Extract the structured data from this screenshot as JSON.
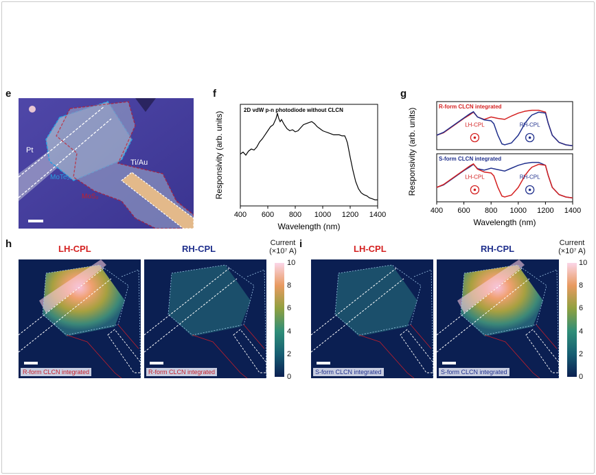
{
  "panels": {
    "e": {
      "label": "e",
      "labels": {
        "pt": "Pt",
        "tiau": "Ti/Au",
        "mote2": "MoTe₂",
        "mos2": "MoS₂"
      }
    },
    "f": {
      "label": "f",
      "inset_title": "2D vdW p-n photodiode without CLCN"
    },
    "g": {
      "label": "g",
      "top_title": "R-form CLCN integrated",
      "bottom_title": "S-form CLCN integrated",
      "lh_label": "LH-CPL",
      "rh_label": "RH-CPL"
    },
    "h": {
      "label": "h",
      "left_title": "LH-CPL",
      "right_title": "RH-CPL",
      "left_tag": "R-form CLCN integrated",
      "right_tag": "R-form CLCN integrated"
    },
    "i": {
      "label": "i",
      "left_title": "LH-CPL",
      "right_title": "RH-CPL",
      "left_tag": "S-form CLCN integrated",
      "right_tag": "S-form CLCN integrated"
    }
  },
  "colorbar": {
    "title_line1": "Current",
    "title_line2": "(×10⁷ A)",
    "ticks": [
      "10",
      "8",
      "6",
      "4",
      "2",
      "0"
    ]
  },
  "colors": {
    "lh": "#d42020",
    "rh": "#1f2f8c",
    "mote2": "#2aa0e0",
    "mos2": "#c41e2a"
  },
  "chart_data": [
    {
      "id": "f",
      "type": "line",
      "title": "2D vdW p-n photodiode without CLCN",
      "xlabel": "Wavelength (nm)",
      "ylabel": "Responsivity (arb. units)",
      "xlim": [
        400,
        1400
      ],
      "ylim": [
        0,
        1
      ],
      "xticks": [
        400,
        600,
        800,
        1000,
        1200,
        1400
      ],
      "series": [
        {
          "x": [
            400,
            420,
            440,
            460,
            480,
            500,
            520,
            540,
            560,
            580,
            600,
            620,
            640,
            660,
            670,
            680,
            690,
            700,
            720,
            740,
            760,
            780,
            800,
            820,
            840,
            860,
            880,
            900,
            920,
            940,
            960,
            980,
            1000,
            1020,
            1040,
            1060,
            1080,
            1100,
            1120,
            1140,
            1160,
            1170,
            1180,
            1190,
            1200,
            1220,
            1240,
            1260,
            1280,
            1300,
            1320,
            1340,
            1360,
            1380,
            1400
          ],
          "y": [
            0.51,
            0.53,
            0.5,
            0.54,
            0.56,
            0.55,
            0.58,
            0.63,
            0.66,
            0.7,
            0.74,
            0.78,
            0.8,
            0.86,
            0.91,
            0.86,
            0.83,
            0.85,
            0.8,
            0.76,
            0.74,
            0.75,
            0.73,
            0.74,
            0.77,
            0.8,
            0.81,
            0.82,
            0.83,
            0.81,
            0.78,
            0.76,
            0.74,
            0.73,
            0.72,
            0.71,
            0.7,
            0.7,
            0.7,
            0.69,
            0.69,
            0.66,
            0.62,
            0.55,
            0.48,
            0.35,
            0.24,
            0.17,
            0.13,
            0.11,
            0.1,
            0.08,
            0.07,
            0.06,
            0.06
          ]
        }
      ]
    },
    {
      "id": "g",
      "type": "line",
      "xlabel": "Wavelength (nm)",
      "ylabel": "Responsivity (arb. units)",
      "xlim": [
        400,
        1400
      ],
      "xticks": [
        400,
        600,
        800,
        1000,
        1200,
        1400
      ],
      "subplots": [
        {
          "title": "R-form CLCN integrated",
          "series": [
            {
              "name": "LH-CPL",
              "color": "#d42020",
              "x": [
                400,
                450,
                500,
                550,
                600,
                640,
                670,
                700,
                750,
                800,
                850,
                900,
                950,
                1000,
                1050,
                1100,
                1150,
                1200,
                1220,
                1250,
                1300,
                1350,
                1400
              ],
              "y": [
                0.3,
                0.35,
                0.45,
                0.55,
                0.65,
                0.72,
                0.78,
                0.68,
                0.63,
                0.68,
                0.65,
                0.63,
                0.7,
                0.76,
                0.8,
                0.82,
                0.82,
                0.78,
                0.55,
                0.3,
                0.15,
                0.1,
                0.08
              ]
            },
            {
              "name": "RH-CPL",
              "color": "#1f2f8c",
              "x": [
                400,
                450,
                500,
                550,
                600,
                640,
                670,
                700,
                750,
                800,
                820,
                850,
                880,
                900,
                950,
                1000,
                1050,
                1080,
                1100,
                1150,
                1200,
                1220,
                1250,
                1300,
                1350,
                1400
              ],
              "y": [
                0.3,
                0.36,
                0.46,
                0.56,
                0.66,
                0.74,
                0.79,
                0.68,
                0.62,
                0.6,
                0.54,
                0.3,
                0.12,
                0.1,
                0.14,
                0.3,
                0.55,
                0.66,
                0.72,
                0.78,
                0.76,
                0.55,
                0.3,
                0.15,
                0.1,
                0.08
              ]
            }
          ]
        },
        {
          "title": "S-form CLCN integrated",
          "series": [
            {
              "name": "RH-CPL",
              "color": "#1f2f8c",
              "x": [
                400,
                450,
                500,
                550,
                600,
                640,
                670,
                700,
                750,
                800,
                850,
                900,
                950,
                1000,
                1050,
                1100,
                1150,
                1200,
                1220,
                1250,
                1300,
                1350,
                1400
              ],
              "y": [
                0.3,
                0.35,
                0.45,
                0.55,
                0.65,
                0.72,
                0.78,
                0.69,
                0.66,
                0.7,
                0.67,
                0.64,
                0.7,
                0.76,
                0.8,
                0.82,
                0.82,
                0.76,
                0.55,
                0.3,
                0.15,
                0.1,
                0.08
              ]
            },
            {
              "name": "LH-CPL",
              "color": "#d42020",
              "x": [
                400,
                450,
                500,
                550,
                600,
                640,
                670,
                700,
                750,
                800,
                820,
                850,
                880,
                900,
                950,
                1000,
                1050,
                1080,
                1100,
                1150,
                1200,
                1220,
                1250,
                1300,
                1350,
                1400
              ],
              "y": [
                0.3,
                0.36,
                0.46,
                0.56,
                0.66,
                0.74,
                0.79,
                0.68,
                0.62,
                0.6,
                0.54,
                0.3,
                0.12,
                0.1,
                0.14,
                0.3,
                0.55,
                0.66,
                0.72,
                0.78,
                0.76,
                0.55,
                0.3,
                0.15,
                0.1,
                0.08
              ]
            }
          ]
        }
      ]
    }
  ]
}
